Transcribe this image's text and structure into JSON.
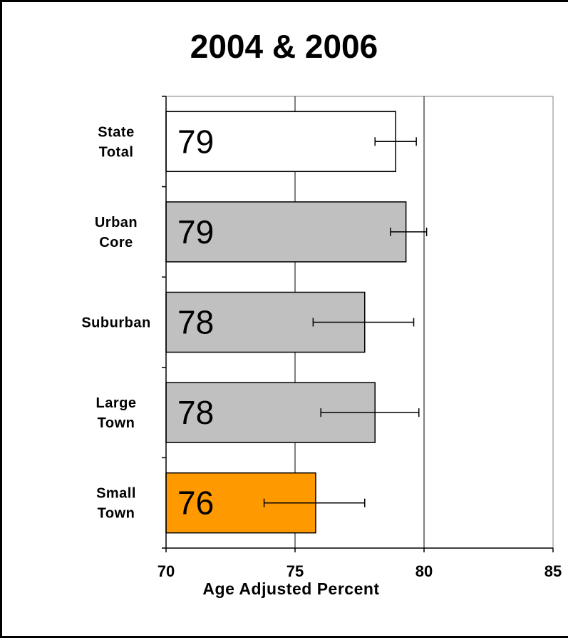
{
  "chart_data": {
    "type": "bar",
    "orientation": "horizontal",
    "title": "2004 & 2006",
    "xlabel": "Age Adjusted Percent",
    "ylabel": "",
    "xlim": [
      70,
      85
    ],
    "xticks": [
      70,
      75,
      80,
      85
    ],
    "grid": true,
    "categories": [
      {
        "lines": [
          "State",
          "Total"
        ],
        "value": 78.9,
        "label": "79",
        "ci": [
          78.1,
          79.7
        ],
        "color": "#ffffff"
      },
      {
        "lines": [
          "Urban",
          "Core"
        ],
        "value": 79.3,
        "label": "79",
        "ci": [
          78.7,
          80.1
        ],
        "color": "#c0c0c0"
      },
      {
        "lines": [
          "Suburban"
        ],
        "value": 77.7,
        "label": "78",
        "ci": [
          75.7,
          79.6
        ],
        "color": "#c0c0c0"
      },
      {
        "lines": [
          "Large",
          "Town"
        ],
        "value": 78.1,
        "label": "78",
        "ci": [
          76.0,
          79.8
        ],
        "color": "#c0c0c0"
      },
      {
        "lines": [
          "Small",
          "Town"
        ],
        "value": 75.8,
        "label": "76",
        "ci": [
          73.8,
          77.7
        ],
        "color": "#ff9900"
      }
    ]
  }
}
